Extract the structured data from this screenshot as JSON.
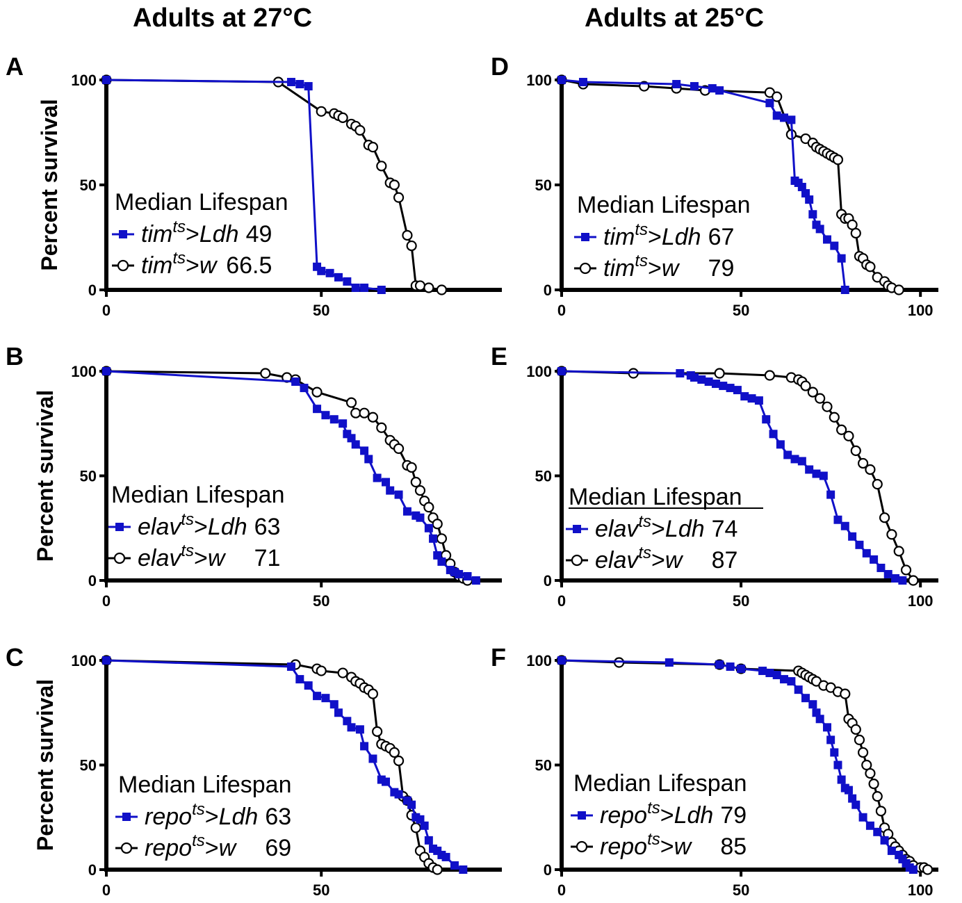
{
  "column_titles": [
    "Adults at 27°C",
    "Adults at 25°C"
  ],
  "chart_data": [
    {
      "panel": "A",
      "type": "line",
      "ylabel": "Percent survival",
      "xlim": [
        0,
        92
      ],
      "ylim": [
        0,
        100
      ],
      "xticks": [
        0,
        50
      ],
      "yticks": [
        0,
        50,
        100
      ],
      "legend_title": "Median Lifespan",
      "series": [
        {
          "name": "tim",
          "sup": "ts",
          "suffix": ">Ldh",
          "median": "49",
          "color": "#1010c8",
          "marker": "square",
          "x": [
            0,
            43,
            45,
            47,
            49,
            50,
            52,
            54,
            56,
            58,
            60,
            64
          ],
          "y": [
            100,
            99,
            98,
            97,
            11,
            9,
            8,
            6,
            4,
            1,
            1,
            0
          ]
        },
        {
          "name": "tim",
          "sup": "ts",
          "suffix": ">w",
          "median": "66.5",
          "color": "#000000",
          "marker": "circle",
          "x": [
            0,
            40,
            50,
            53,
            54,
            55,
            57,
            58,
            59,
            61,
            62,
            64,
            66,
            67,
            68,
            70,
            71,
            72,
            73,
            75,
            78
          ],
          "y": [
            100,
            99,
            85,
            84,
            83,
            82,
            79,
            78,
            76,
            69,
            68,
            59,
            51,
            50,
            44,
            26,
            21,
            2,
            2,
            1,
            0
          ]
        }
      ]
    },
    {
      "panel": "B",
      "type": "line",
      "ylabel": "Percent survival",
      "xlim": [
        0,
        92
      ],
      "ylim": [
        0,
        100
      ],
      "xticks": [
        0,
        50
      ],
      "yticks": [
        0,
        50,
        100
      ],
      "legend_title": "Median Lifespan",
      "series": [
        {
          "name": "elav",
          "sup": "ts",
          "suffix": ">Ldh",
          "median": "63",
          "color": "#1010c8",
          "marker": "square",
          "x": [
            0,
            44,
            46,
            49,
            51,
            53,
            55,
            56,
            57,
            58,
            60,
            61,
            63,
            65,
            66,
            68,
            70,
            72,
            73,
            75,
            76,
            77,
            78,
            80,
            81,
            82,
            84,
            86
          ],
          "y": [
            100,
            95,
            92,
            82,
            79,
            77,
            75,
            70,
            68,
            65,
            62,
            58,
            49,
            47,
            43,
            41,
            33,
            31,
            30,
            25,
            20,
            12,
            9,
            5,
            4,
            3,
            2,
            0
          ]
        },
        {
          "name": "elav",
          "sup": "ts",
          "suffix": ">w",
          "median": "71",
          "color": "#000000",
          "marker": "circle",
          "x": [
            0,
            37,
            42,
            44,
            49,
            57,
            58,
            60,
            62,
            64,
            66,
            67,
            68,
            70,
            71,
            72,
            73,
            74,
            75,
            76,
            77,
            78,
            79,
            80,
            81,
            82,
            83,
            84
          ],
          "y": [
            100,
            99,
            97,
            96,
            90,
            85,
            80,
            80,
            78,
            73,
            67,
            65,
            63,
            55,
            54,
            47,
            43,
            38,
            35,
            30,
            27,
            20,
            12,
            8,
            4,
            2,
            1,
            0
          ]
        }
      ]
    },
    {
      "panel": "C",
      "type": "line",
      "ylabel": "Percent survival",
      "xlim": [
        0,
        92
      ],
      "ylim": [
        0,
        100
      ],
      "xticks": [
        0,
        50
      ],
      "yticks": [
        0,
        50,
        100
      ],
      "legend_title": "Median Lifespan",
      "series": [
        {
          "name": "repo",
          "sup": "ts",
          "suffix": ">Ldh",
          "median": "63",
          "color": "#1010c8",
          "marker": "square",
          "x": [
            0,
            43,
            45,
            47,
            49,
            51,
            53,
            54,
            56,
            57,
            59,
            60,
            62,
            64,
            65,
            67,
            68,
            70,
            71,
            72,
            73,
            74,
            75,
            76,
            77,
            78,
            79,
            81,
            83
          ],
          "y": [
            100,
            97,
            91,
            88,
            83,
            82,
            79,
            75,
            71,
            68,
            67,
            59,
            53,
            43,
            42,
            37,
            36,
            33,
            31,
            25,
            24,
            21,
            14,
            10,
            9,
            7,
            6,
            2,
            0
          ]
        },
        {
          "name": "repo",
          "sup": "ts",
          "suffix": ">w",
          "median": "69",
          "color": "#000000",
          "marker": "circle",
          "x": [
            0,
            44,
            49,
            50,
            55,
            57,
            58,
            59,
            60,
            61,
            62,
            63,
            64,
            65,
            66,
            67,
            68,
            69,
            70,
            71,
            72,
            73,
            74,
            75,
            76,
            77
          ],
          "y": [
            100,
            98,
            96,
            95,
            94,
            92,
            90,
            89,
            87,
            86,
            84,
            66,
            60,
            59,
            58,
            56,
            52,
            35,
            33,
            26,
            20,
            9,
            6,
            3,
            1,
            0
          ]
        }
      ]
    },
    {
      "panel": "D",
      "type": "line",
      "ylabel": "",
      "xlim": [
        0,
        105
      ],
      "ylim": [
        0,
        100
      ],
      "xticks": [
        0,
        50,
        100
      ],
      "yticks": [
        0,
        50,
        100
      ],
      "legend_title": "Median Lifespan",
      "series": [
        {
          "name": "tim",
          "sup": "ts",
          "suffix": ">Ldh",
          "median": "67",
          "color": "#1010c8",
          "marker": "square",
          "x": [
            0,
            6,
            32,
            37,
            42,
            44,
            58,
            60,
            62,
            64,
            65,
            66,
            67,
            68,
            69,
            70,
            71,
            72,
            74,
            76,
            78,
            79
          ],
          "y": [
            100,
            99,
            98,
            97,
            96,
            95,
            89,
            83,
            82,
            81,
            52,
            51,
            49,
            46,
            43,
            36,
            31,
            29,
            24,
            21,
            15,
            0
          ]
        },
        {
          "name": "tim",
          "sup": "ts",
          "suffix": ">w",
          "median": "79",
          "color": "#000000",
          "marker": "circle",
          "x": [
            0,
            6,
            23,
            32,
            40,
            58,
            60,
            64,
            68,
            70,
            71,
            72,
            73,
            74,
            75,
            76,
            77,
            78,
            79,
            80,
            81,
            82,
            83,
            84,
            85,
            86,
            88,
            90,
            91,
            92,
            94
          ],
          "y": [
            100,
            98,
            97,
            96,
            95,
            94,
            92,
            74,
            72,
            70,
            68,
            67,
            66,
            65,
            64,
            63,
            62,
            36,
            34,
            34,
            31,
            27,
            16,
            15,
            12,
            11,
            6,
            4,
            2,
            1,
            0
          ]
        }
      ]
    },
    {
      "panel": "E",
      "type": "line",
      "ylabel": "",
      "xlim": [
        0,
        105
      ],
      "ylim": [
        0,
        100
      ],
      "xticks": [
        0,
        50,
        100
      ],
      "yticks": [
        0,
        50,
        100
      ],
      "legend_title": "Median Lifespan",
      "series": [
        {
          "name": "elav",
          "sup": "ts",
          "suffix": ">Ldh",
          "median": "74",
          "color": "#1010c8",
          "marker": "square",
          "x": [
            0,
            33,
            36,
            37,
            39,
            41,
            43,
            45,
            47,
            49,
            51,
            53,
            55,
            57,
            59,
            61,
            63,
            65,
            67,
            69,
            71,
            73,
            75,
            77,
            79,
            81,
            83,
            85,
            87,
            89,
            91,
            93,
            95
          ],
          "y": [
            100,
            99,
            98,
            97,
            96,
            95,
            94,
            93,
            92,
            91,
            88,
            87,
            86,
            77,
            70,
            65,
            60,
            58,
            57,
            53,
            51,
            50,
            41,
            29,
            26,
            21,
            17,
            13,
            10,
            6,
            3,
            1,
            0
          ]
        },
        {
          "name": "elav",
          "sup": "ts",
          "suffix": ">w",
          "median": "87",
          "color": "#000000",
          "marker": "circle",
          "x": [
            0,
            20,
            44,
            58,
            64,
            66,
            67,
            68,
            70,
            72,
            74,
            76,
            78,
            80,
            82,
            84,
            86,
            88,
            90,
            92,
            94,
            96,
            98
          ],
          "y": [
            100,
            99,
            99,
            98,
            97,
            96,
            95,
            93,
            90,
            87,
            83,
            78,
            72,
            69,
            62,
            56,
            53,
            46,
            30,
            22,
            14,
            5,
            0
          ]
        }
      ]
    },
    {
      "panel": "F",
      "type": "line",
      "ylabel": "",
      "xlim": [
        0,
        105
      ],
      "ylim": [
        0,
        100
      ],
      "xticks": [
        0,
        50,
        100
      ],
      "yticks": [
        0,
        50,
        100
      ],
      "legend_title": "Median Lifespan",
      "series": [
        {
          "name": "repo",
          "sup": "ts",
          "suffix": ">Ldh",
          "median": "79",
          "color": "#1010c8",
          "marker": "square",
          "x": [
            0,
            30,
            44,
            47,
            50,
            56,
            58,
            60,
            62,
            64,
            66,
            68,
            70,
            71,
            72,
            74,
            75,
            76,
            77,
            78,
            79,
            80,
            81,
            82,
            84,
            86,
            88,
            90,
            92,
            94,
            95,
            96,
            97,
            98
          ],
          "y": [
            100,
            99,
            98,
            97,
            96,
            95,
            94,
            93,
            91,
            90,
            86,
            82,
            79,
            75,
            72,
            68,
            62,
            56,
            50,
            43,
            39,
            38,
            34,
            31,
            25,
            21,
            18,
            14,
            9,
            7,
            5,
            3,
            1,
            0
          ]
        },
        {
          "name": "repo",
          "sup": "ts",
          "suffix": ">w",
          "median": "85",
          "color": "#000000",
          "marker": "circle",
          "x": [
            0,
            16,
            44,
            50,
            66,
            67,
            68,
            69,
            70,
            71,
            73,
            75,
            77,
            79,
            80,
            81,
            82,
            83,
            84,
            85,
            86,
            87,
            88,
            89,
            90,
            91,
            92,
            93,
            94,
            95,
            96,
            97,
            98,
            100,
            101,
            102
          ],
          "y": [
            100,
            99,
            98,
            96,
            95,
            94,
            93,
            92,
            91,
            90,
            88,
            87,
            85,
            84,
            72,
            70,
            67,
            62,
            56,
            50,
            46,
            41,
            35,
            28,
            20,
            17,
            13,
            11,
            9,
            7,
            5,
            4,
            2,
            1,
            1,
            0
          ]
        }
      ]
    }
  ]
}
